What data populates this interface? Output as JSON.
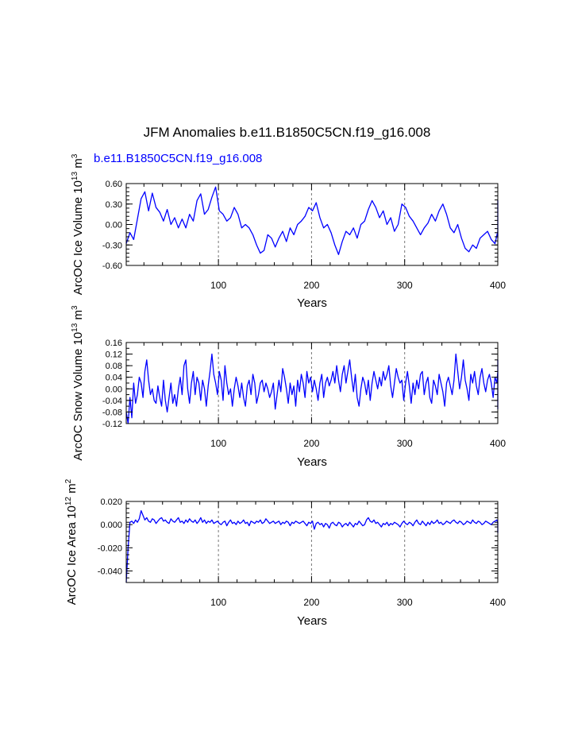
{
  "title": "JFM Anomalies b.e11.B1850C5CN.f19_g16.008",
  "case_label": "b.e11.B1850C5CN.f19_g16.008",
  "colors": {
    "series": "#0000ff",
    "axis": "#000000",
    "grid": "#777777",
    "case_label": "#0000ff"
  },
  "chart_data": [
    {
      "id": "ice-volume",
      "type": "line",
      "ylabel": {
        "main": "ArcOC Ice Volume 10",
        "exp1": "13",
        "mid": " m",
        "exp2": "3"
      },
      "xlabel": "Years",
      "xlim": [
        1,
        400
      ],
      "ylim": [
        -0.6,
        0.6
      ],
      "yticks": [
        -0.6,
        -0.3,
        0.0,
        0.3,
        0.6
      ],
      "ytick_labels": [
        "-0.60",
        "-0.30",
        "0.00",
        "0.30",
        "0.60"
      ],
      "xticks": [
        100,
        200,
        300,
        400
      ],
      "xtick_labels": [
        "100",
        "200",
        "300",
        "400"
      ],
      "gridlines_x": [
        100,
        200,
        300
      ],
      "series": {
        "x_start": 1,
        "x_step": 4,
        "values": [
          -0.28,
          -0.12,
          -0.22,
          0.08,
          0.38,
          0.48,
          0.2,
          0.46,
          0.25,
          0.18,
          0.05,
          0.22,
          0.0,
          0.1,
          -0.05,
          0.08,
          -0.05,
          0.15,
          0.05,
          0.35,
          0.45,
          0.15,
          0.22,
          0.4,
          0.55,
          0.2,
          0.15,
          0.05,
          0.1,
          0.25,
          0.15,
          -0.05,
          0.0,
          -0.05,
          -0.15,
          -0.3,
          -0.42,
          -0.38,
          -0.15,
          -0.2,
          -0.33,
          -0.2,
          -0.1,
          -0.25,
          -0.05,
          -0.15,
          0.0,
          0.05,
          0.12,
          0.25,
          0.2,
          0.32,
          0.1,
          -0.05,
          0.0,
          -0.12,
          -0.3,
          -0.44,
          -0.25,
          -0.1,
          -0.15,
          -0.05,
          -0.2,
          0.0,
          0.05,
          0.22,
          0.35,
          0.25,
          0.1,
          0.2,
          0.0,
          0.1,
          -0.1,
          0.0,
          0.3,
          0.25,
          0.12,
          0.05,
          -0.05,
          -0.15,
          -0.05,
          0.02,
          0.15,
          0.05,
          0.2,
          0.3,
          0.15,
          -0.05,
          -0.12,
          0.0,
          -0.2,
          -0.35,
          -0.4,
          -0.3,
          -0.35,
          -0.2,
          -0.15,
          -0.1,
          -0.22,
          -0.28,
          -0.1,
          -0.15,
          0.0,
          0.2,
          0.15,
          0.05,
          -0.05,
          0.1,
          -0.1,
          0.0,
          -0.12,
          0.0,
          0.15,
          0.22,
          0.3,
          0.1,
          0.0,
          -0.1,
          -0.15,
          -0.05,
          -0.15,
          0.1,
          0.05,
          0.25,
          0.35,
          0.3,
          0.2,
          0.05,
          0.0,
          0.1,
          -0.05,
          0.0,
          0.15,
          0.2,
          0.05,
          0.0,
          -0.05,
          -0.1,
          -0.15,
          0.0,
          0.2,
          0.1,
          0.12,
          0.0,
          -0.05,
          0.0,
          0.15,
          0.22,
          0.18,
          -0.05,
          -0.05,
          -0.12,
          -0.18,
          0.0,
          -0.15,
          0.05,
          0.15,
          0.15,
          0.2,
          0.08,
          0.12,
          0.0,
          0.15,
          0.18,
          0.12,
          0.05,
          -0.05,
          0.0,
          -0.15,
          -0.05,
          0.02,
          -0.15,
          0.1,
          0.15,
          0.2,
          0.22,
          0.18,
          -0.05,
          -0.1,
          -0.05,
          -0.15,
          -0.1,
          -0.15,
          -0.1,
          -0.05,
          -0.12,
          0.05,
          0.2,
          0.18,
          0.15,
          0.1,
          0.0,
          -0.15,
          -0.2
        ]
      }
    },
    {
      "id": "snow-volume",
      "type": "line",
      "ylabel": {
        "main": "ArcOC Snow Volume 10",
        "exp1": "13",
        "mid": " m",
        "exp2": "3"
      },
      "xlabel": "Years",
      "xlim": [
        1,
        400
      ],
      "ylim": [
        -0.12,
        0.16
      ],
      "yticks": [
        -0.12,
        -0.08,
        -0.04,
        0.0,
        0.04,
        0.08,
        0.12,
        0.16
      ],
      "ytick_labels": [
        "-0.12",
        "-0.08",
        "-0.04",
        "0.00",
        "0.04",
        "0.08",
        "0.12",
        "0.16"
      ],
      "xticks": [
        100,
        200,
        300,
        400
      ],
      "xtick_labels": [
        "100",
        "200",
        "300",
        "400"
      ],
      "gridlines_x": [
        100,
        200,
        300
      ],
      "series": {
        "x_start": 1,
        "x_step": 2,
        "values": [
          -0.08,
          -0.12,
          -0.03,
          -0.1,
          0.02,
          -0.05,
          -0.02,
          0.04,
          0.02,
          -0.03,
          0.06,
          0.1,
          0.03,
          -0.02,
          0.0,
          -0.04,
          -0.05,
          0.01,
          -0.03,
          -0.06,
          0.03,
          -0.04,
          -0.08,
          -0.03,
          0.02,
          -0.05,
          -0.02,
          -0.06,
          0.0,
          0.04,
          -0.02,
          0.08,
          0.1,
          0.0,
          -0.05,
          0.02,
          0.06,
          -0.02,
          0.04,
          0.02,
          -0.04,
          0.03,
          0.0,
          -0.06,
          0.01,
          0.06,
          0.12,
          0.05,
          0.02,
          -0.02,
          0.06,
          0.03,
          -0.04,
          0.08,
          0.02,
          -0.02,
          0.0,
          -0.06,
          0.0,
          0.04,
          0.01,
          -0.03,
          0.02,
          -0.03,
          -0.06,
          0.01,
          0.03,
          -0.02,
          0.05,
          0.02,
          -0.05,
          -0.02,
          0.02,
          0.03,
          -0.01,
          0.02,
          0.0,
          -0.03,
          -0.01,
          0.02,
          -0.07,
          -0.02,
          0.03,
          -0.01,
          0.07,
          0.04,
          0.0,
          -0.05,
          0.02,
          -0.02,
          0.01,
          -0.06,
          0.03,
          -0.01,
          0.05,
          0.02,
          -0.03,
          0.06,
          0.02,
          0.04,
          -0.01,
          0.03,
          0.0,
          -0.04,
          0.02,
          0.05,
          -0.03,
          0.02,
          0.04,
          0.01,
          0.03,
          0.06,
          0.02,
          0.08,
          0.03,
          -0.01,
          0.05,
          0.08,
          0.02,
          0.06,
          0.1,
          0.04,
          -0.01,
          0.05,
          -0.03,
          -0.06,
          0.0,
          0.04,
          0.02,
          -0.02,
          0.03,
          -0.04,
          0.02,
          0.06,
          0.03,
          0.0,
          0.04,
          0.01,
          0.06,
          0.03,
          0.05,
          0.08,
          0.01,
          -0.03,
          0.02,
          0.07,
          0.04,
          0.02,
          0.03,
          -0.04,
          0.02,
          0.06,
          0.01,
          -0.05,
          0.02,
          -0.02,
          0.03,
          0.0,
          0.05,
          0.06,
          -0.02,
          0.02,
          0.04,
          -0.03,
          -0.05,
          0.03,
          0.01,
          -0.02,
          0.05,
          0.02,
          -0.01,
          -0.06,
          0.02,
          0.04,
          0.01,
          -0.02,
          0.03,
          0.12,
          0.06,
          0.0,
          0.04,
          0.1,
          0.03,
          0.0,
          -0.04,
          0.05,
          0.02,
          0.06,
          0.01,
          -0.02,
          0.04,
          0.07,
          0.02,
          -0.01,
          0.03,
          0.05,
          0.02,
          -0.03,
          0.04,
          0.02,
          0.06,
          -0.02,
          0.01,
          0.03,
          -0.04,
          0.0,
          -0.06,
          0.02,
          0.04,
          -0.01,
          0.03,
          -0.02,
          0.02,
          -0.04,
          0.03,
          0.01,
          -0.02,
          0.05,
          0.0,
          -0.03,
          0.02,
          -0.05,
          0.04,
          0.02,
          -0.06,
          -0.01,
          0.02,
          -0.03,
          0.05,
          0.02,
          0.06,
          0.1,
          0.0,
          0.04,
          0.1,
          0.02,
          -0.03,
          0.08,
          -0.02,
          -0.07
        ]
      }
    },
    {
      "id": "ice-area",
      "type": "line",
      "ylabel": {
        "main": "ArcOC Ice Area 10",
        "exp1": "12",
        "mid": " m",
        "exp2": "2"
      },
      "xlabel": "Years",
      "xlim": [
        1,
        400
      ],
      "ylim": [
        -0.05,
        0.02
      ],
      "yticks": [
        -0.04,
        -0.02,
        0.0,
        0.02
      ],
      "ytick_labels": [
        "-0.040",
        "-0.020",
        "0.000",
        "0.020"
      ],
      "xticks": [
        100,
        200,
        300,
        400
      ],
      "xtick_labels": [
        "100",
        "200",
        "300",
        "400"
      ],
      "gridlines_x": [
        100,
        200,
        300
      ],
      "series": {
        "x_start": 1,
        "x_step": 2,
        "values": [
          -0.05,
          -0.02,
          0.002,
          0.003,
          0.001,
          0.004,
          0.002,
          0.005,
          0.012,
          0.008,
          0.004,
          0.006,
          0.003,
          0.002,
          0.005,
          0.004,
          0.001,
          0.003,
          0.005,
          0.006,
          0.003,
          0.004,
          0.002,
          0.001,
          0.005,
          0.003,
          0.002,
          0.004,
          0.006,
          0.002,
          0.003,
          0.001,
          0.004,
          0.002,
          0.005,
          0.003,
          0.002,
          0.004,
          0.001,
          0.003,
          0.006,
          0.002,
          0.004,
          0.001,
          0.003,
          0.002,
          0.004,
          0.001,
          0.002,
          0.003,
          0.001,
          0.0,
          0.002,
          0.003,
          -0.001,
          0.002,
          0.004,
          0.001,
          0.002,
          0.0,
          0.003,
          0.001,
          0.002,
          0.004,
          0.001,
          0.002,
          -0.001,
          0.003,
          0.002,
          0.001,
          0.003,
          0.002,
          0.004,
          0.001,
          0.002,
          0.005,
          0.003,
          0.001,
          0.002,
          0.003,
          0.001,
          0.002,
          0.003,
          0.0,
          0.002,
          0.001,
          0.003,
          0.002,
          -0.001,
          0.002,
          0.001,
          0.003,
          0.002,
          0.001,
          0.002,
          0.003,
          0.001,
          -0.001,
          0.002,
          0.001,
          0.003,
          -0.004,
          0.001,
          0.002,
          0.0,
          0.001,
          -0.002,
          0.001,
          0.0,
          -0.003,
          0.001,
          0.002,
          0.0,
          -0.001,
          0.002,
          0.001,
          -0.002,
          0.0,
          0.001,
          -0.001,
          0.002,
          0.0,
          -0.002,
          0.001,
          0.0,
          0.003,
          0.001,
          -0.001,
          0.0,
          0.004,
          0.006,
          0.003,
          0.002,
          0.004,
          0.001,
          0.002,
          0.0,
          -0.002,
          0.001,
          0.0,
          0.002,
          -0.001,
          0.001,
          0.0,
          0.002,
          0.001,
          0.0,
          -0.002,
          0.001,
          0.003,
          0.001,
          0.0,
          0.002,
          0.001,
          -0.001,
          0.002,
          0.004,
          0.001,
          0.0,
          0.003,
          0.001,
          -0.001,
          0.002,
          0.0,
          0.003,
          0.001,
          0.002,
          0.004,
          0.001,
          0.002,
          0.0,
          0.001,
          0.003,
          0.002,
          0.001,
          0.003,
          0.004,
          0.002,
          0.001,
          0.003,
          0.002,
          0.0,
          0.001,
          0.003,
          0.002,
          0.001,
          0.004,
          0.002,
          0.001,
          0.003,
          0.002,
          0.0,
          0.001,
          0.003,
          0.002,
          0.001,
          0.0,
          0.002,
          0.003,
          0.004,
          0.001,
          0.002,
          0.0,
          -0.001,
          -0.007,
          -0.003,
          0.0,
          0.002,
          -0.001,
          0.001
        ]
      }
    }
  ]
}
